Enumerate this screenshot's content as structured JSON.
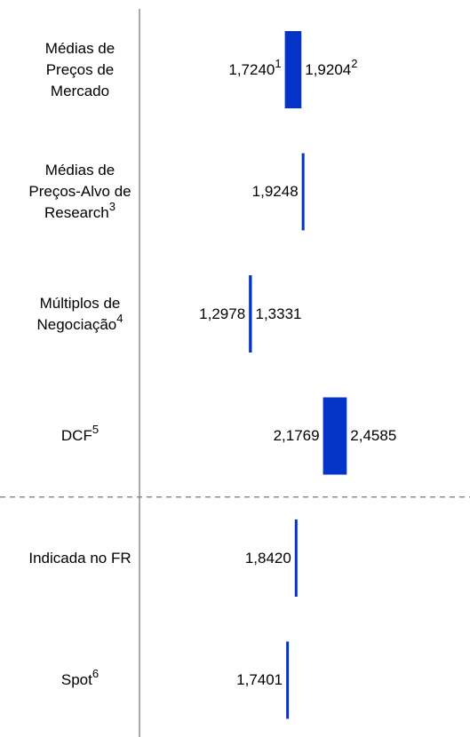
{
  "chart_data": {
    "type": "range_bar",
    "xlim": [
      0,
      3.92
    ],
    "color": "#0433c8",
    "separator_after": 3,
    "items": [
      {
        "category": "Médias de Preços de Mercado",
        "low": 1.724,
        "low_label": "1,7240",
        "low_note": "1",
        "high": 1.9204,
        "high_label": "1,9204",
        "high_note": "2"
      },
      {
        "category": "Médias de Preços-Alvo de Research",
        "category_note": "3",
        "low": 1.9248,
        "low_label": "1,9248"
      },
      {
        "category": "Múltiplos de Negociação",
        "category_note": "4",
        "low": 1.2978,
        "low_label": "1,2978",
        "high": 1.3331,
        "high_label": "1,3331"
      },
      {
        "category": "DCF",
        "category_note": "5",
        "low": 2.1769,
        "low_label": "2,1769",
        "high": 2.4585,
        "high_label": "2,4585"
      },
      {
        "category": "Indicada no FR",
        "low": 1.842,
        "low_label": "1,8420"
      },
      {
        "category": "Spot",
        "category_note": "6",
        "low": 1.7401,
        "low_label": "1,7401"
      }
    ]
  }
}
